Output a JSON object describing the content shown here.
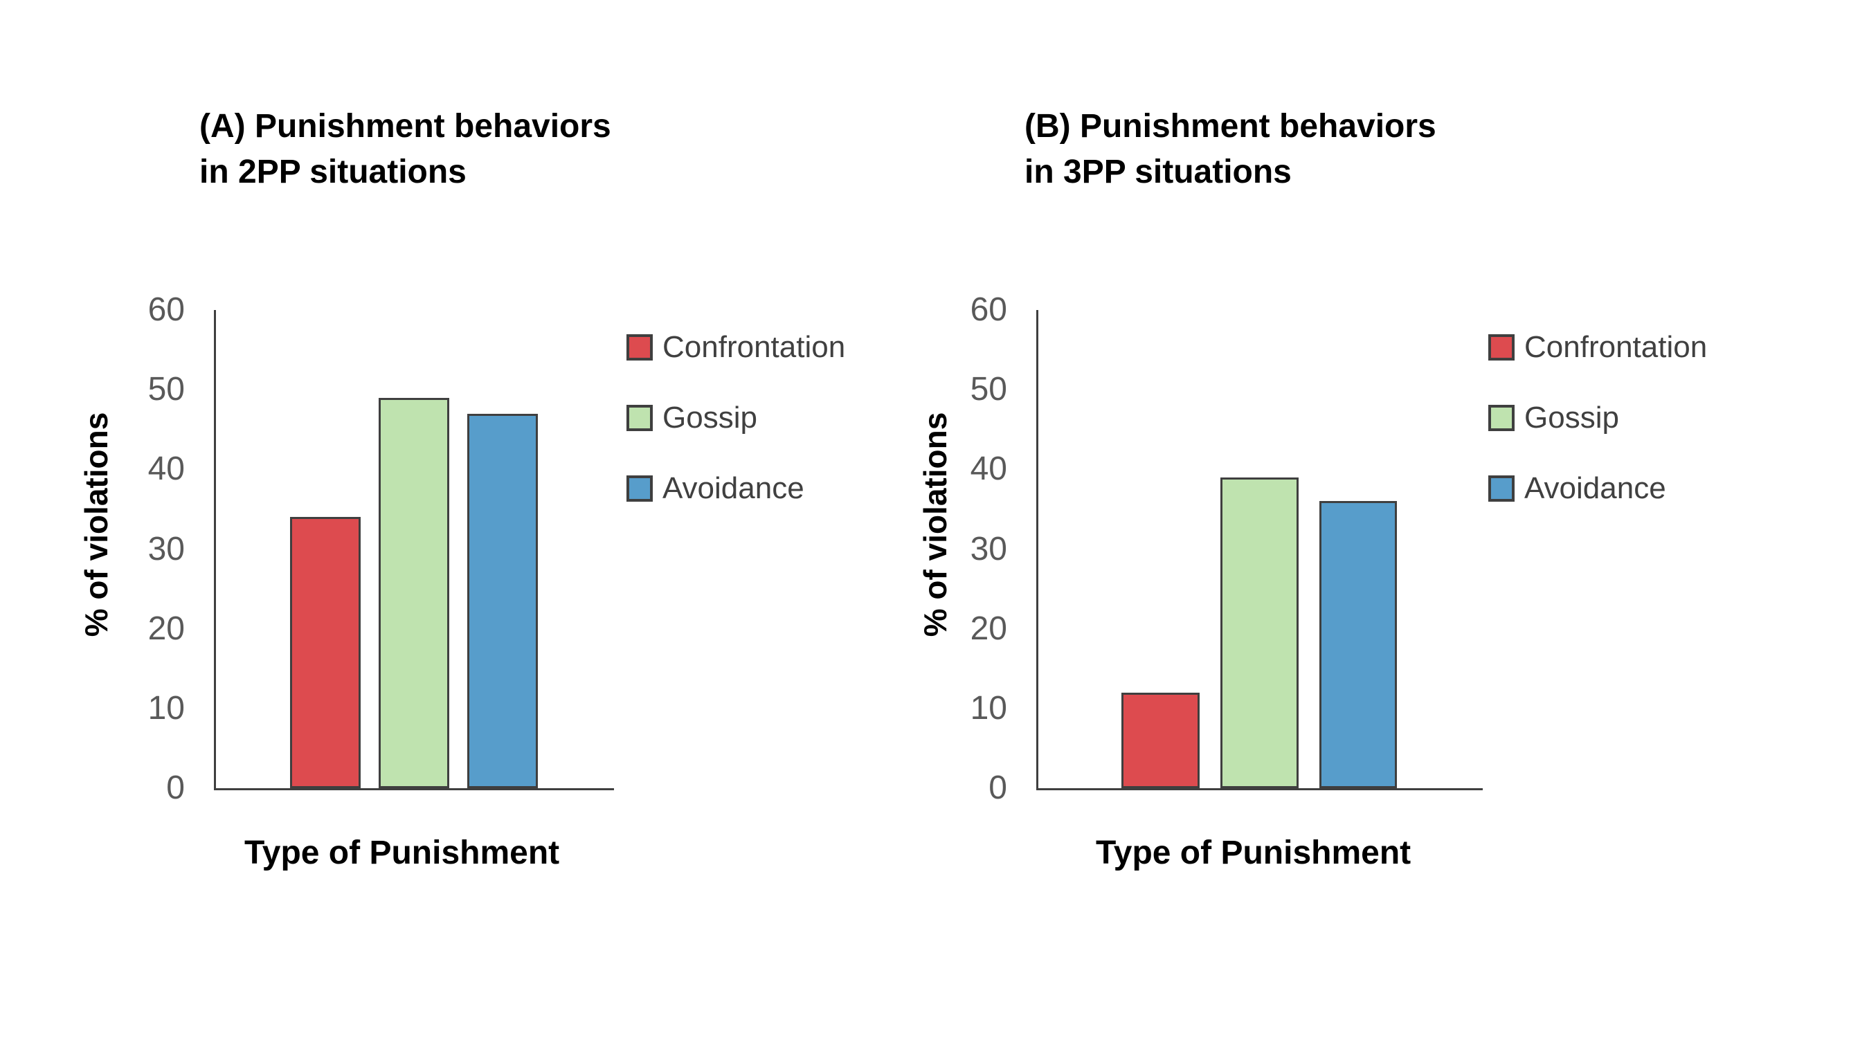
{
  "figure": {
    "background": "#FFFFFF"
  },
  "colors": {
    "axis": "#3F3F3F",
    "tick_labels": "#595959",
    "legend_text": "#404040",
    "title_text": "#000000",
    "confrontation": "#DD4B4F",
    "gossip": "#BFE3AF",
    "avoidance": "#579DCB"
  },
  "chart_data": [
    {
      "type": "bar",
      "title": "(A) Punishment behaviors in 2PP situations",
      "title_lines": [
        "(A) Punishment behaviors",
        "in 2PP situations"
      ],
      "xlabel": "Type of Punishment",
      "ylabel": "% of violations",
      "ylim": [
        0,
        60
      ],
      "yticks": [
        0,
        10,
        20,
        30,
        40,
        50,
        60
      ],
      "grid": false,
      "legend_position": "right",
      "categories": [
        "Confrontation",
        "Gossip",
        "Avoidance"
      ],
      "series": [
        {
          "name": "Confrontation",
          "value": 34,
          "color": "#DD4B4F"
        },
        {
          "name": "Gossip",
          "value": 49,
          "color": "#BFE3AF"
        },
        {
          "name": "Avoidance",
          "value": 47,
          "color": "#579DCB"
        }
      ]
    },
    {
      "type": "bar",
      "title": "(B) Punishment behaviors in 3PP situations",
      "title_lines": [
        "(B) Punishment behaviors",
        "in 3PP situations"
      ],
      "xlabel": "Type of Punishment",
      "ylabel": "% of violations",
      "ylim": [
        0,
        60
      ],
      "yticks": [
        0,
        10,
        20,
        30,
        40,
        50,
        60
      ],
      "grid": false,
      "legend_position": "right",
      "categories": [
        "Confrontation",
        "Gossip",
        "Avoidance"
      ],
      "series": [
        {
          "name": "Confrontation",
          "value": 12,
          "color": "#DD4B4F"
        },
        {
          "name": "Gossip",
          "value": 39,
          "color": "#BFE3AF"
        },
        {
          "name": "Avoidance",
          "value": 36,
          "color": "#579DCB"
        }
      ]
    }
  ]
}
